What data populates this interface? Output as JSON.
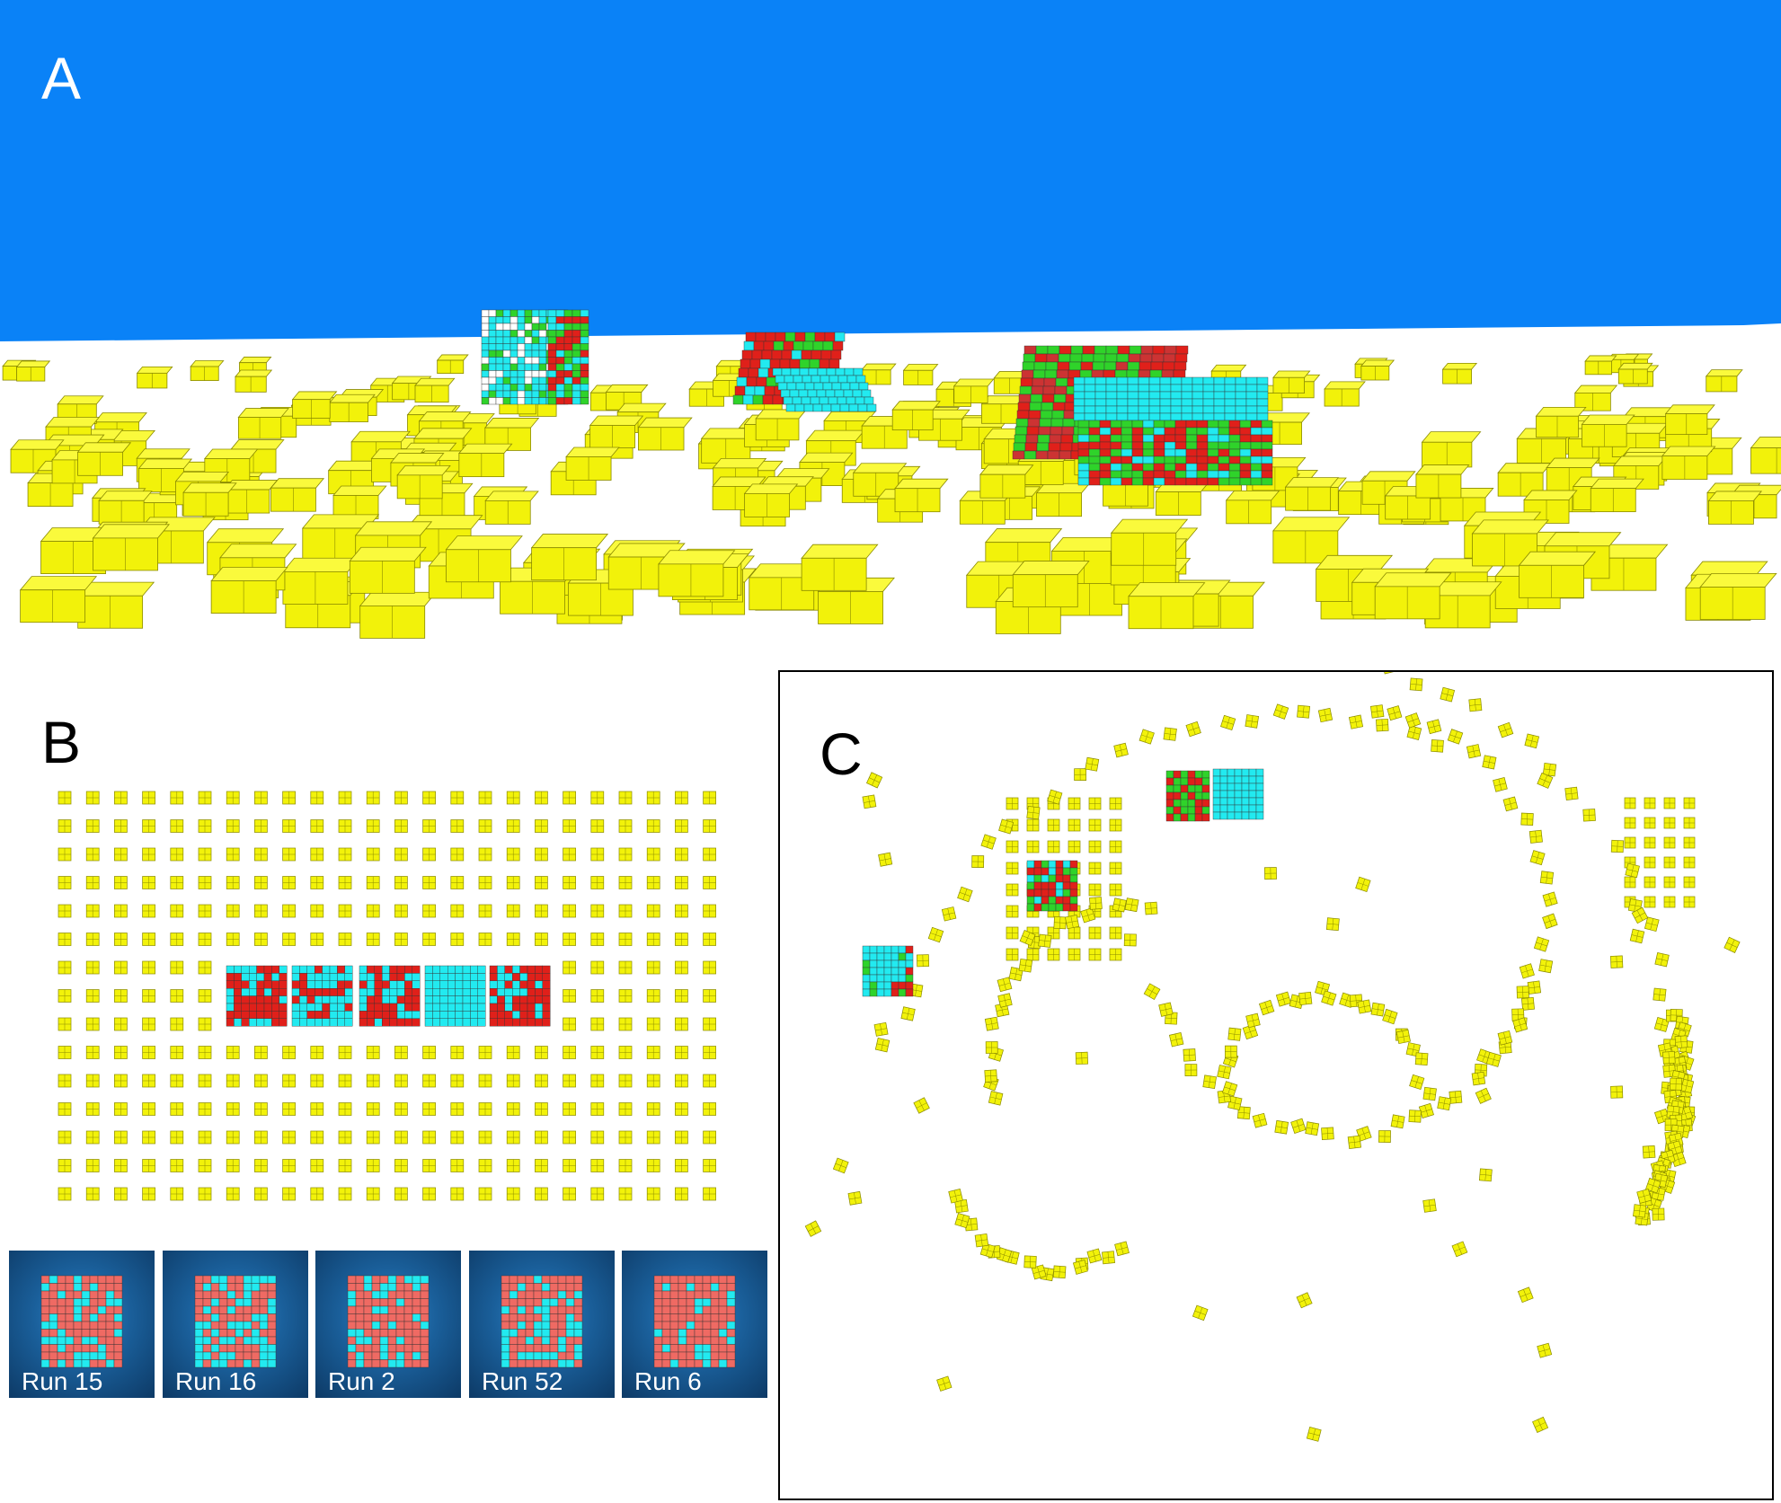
{
  "panels": {
    "a": {
      "letter": "A"
    },
    "b": {
      "letter": "B",
      "runs": [
        {
          "label": "Run 15"
        },
        {
          "label": "Run 16"
        },
        {
          "label": "Run 2"
        },
        {
          "label": "Run 52"
        },
        {
          "label": "Run 6"
        }
      ]
    },
    "c": {
      "letter": "C"
    }
  },
  "colors": {
    "sky": "#0a82f7",
    "block": "#f2f20a",
    "block_edge": "#8a8a00",
    "cyan": "#22eaf0",
    "red": "#e0201a",
    "salmon": "#ef6a63",
    "green": "#2fd32a"
  }
}
